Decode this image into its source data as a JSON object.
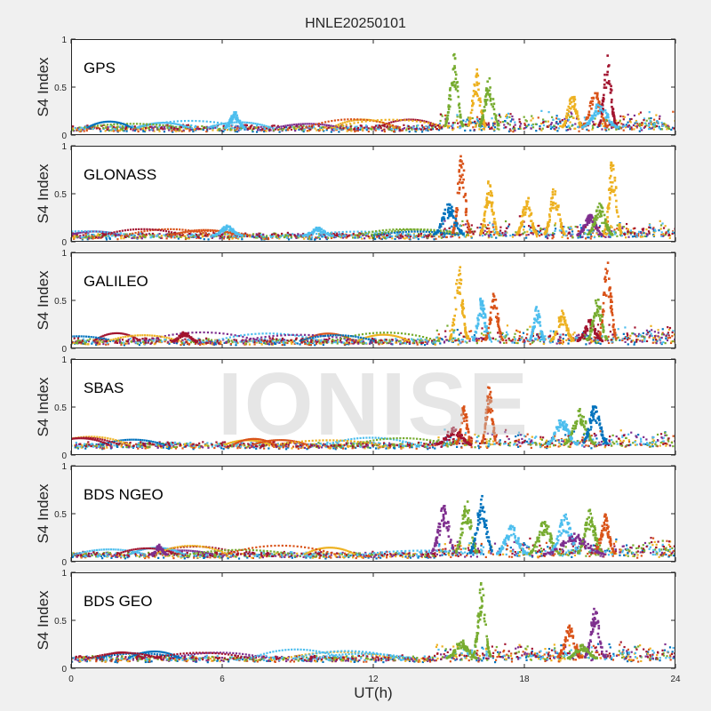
{
  "title": "HNLE20250101",
  "xlabel": "UT(h)",
  "watermark": "IONISE",
  "chart_data": {
    "type": "scatter",
    "title": "HNLE20250101",
    "xlabel": "UT(h)",
    "ylabel": "S4 Index",
    "xlim": [
      0,
      24
    ],
    "ylim": [
      0,
      1
    ],
    "xticks": [
      0,
      6,
      12,
      18,
      24
    ],
    "yticks": [
      0,
      0.5,
      1
    ],
    "ytick_labels": [
      "0",
      "0.5",
      "1"
    ],
    "series_colors": [
      "#0072bd",
      "#d95319",
      "#edb120",
      "#7e2f8e",
      "#77ac30",
      "#4dbeee",
      "#a2142f"
    ],
    "panels": [
      {
        "label": "GPS",
        "baseline": 0.07,
        "events": [
          {
            "x": 15.2,
            "width": 0.35,
            "peak": 0.85,
            "color": 4
          },
          {
            "x": 16.1,
            "width": 0.35,
            "peak": 0.7,
            "color": 2
          },
          {
            "x": 16.6,
            "width": 0.4,
            "peak": 0.6,
            "color": 4
          },
          {
            "x": 19.9,
            "width": 0.4,
            "peak": 0.45,
            "color": 2
          },
          {
            "x": 20.8,
            "width": 0.5,
            "peak": 0.5,
            "color": 1
          },
          {
            "x": 21.3,
            "width": 0.35,
            "peak": 0.83,
            "color": 6
          },
          {
            "x": 21.0,
            "width": 0.7,
            "peak": 0.35,
            "color": 5
          },
          {
            "x": 6.5,
            "width": 0.4,
            "peak": 0.25,
            "color": 5
          }
        ]
      },
      {
        "label": "GLONASS",
        "baseline": 0.06,
        "events": [
          {
            "x": 15.5,
            "width": 0.35,
            "peak": 0.95,
            "color": 1
          },
          {
            "x": 15.0,
            "width": 0.6,
            "peak": 0.4,
            "color": 0
          },
          {
            "x": 16.6,
            "width": 0.35,
            "peak": 0.65,
            "color": 2
          },
          {
            "x": 18.1,
            "width": 0.4,
            "peak": 0.5,
            "color": 2
          },
          {
            "x": 19.2,
            "width": 0.4,
            "peak": 0.6,
            "color": 2
          },
          {
            "x": 21.5,
            "width": 0.35,
            "peak": 0.9,
            "color": 2
          },
          {
            "x": 20.6,
            "width": 0.5,
            "peak": 0.3,
            "color": 3
          },
          {
            "x": 21.0,
            "width": 0.5,
            "peak": 0.4,
            "color": 4
          },
          {
            "x": 6.2,
            "width": 0.6,
            "peak": 0.17,
            "color": 5
          },
          {
            "x": 9.8,
            "width": 0.6,
            "peak": 0.15,
            "color": 5
          }
        ]
      },
      {
        "label": "GALILEO",
        "baseline": 0.07,
        "events": [
          {
            "x": 15.4,
            "width": 0.35,
            "peak": 0.92,
            "color": 2
          },
          {
            "x": 16.3,
            "width": 0.35,
            "peak": 0.55,
            "color": 5
          },
          {
            "x": 16.8,
            "width": 0.35,
            "peak": 0.6,
            "color": 1
          },
          {
            "x": 18.5,
            "width": 0.3,
            "peak": 0.45,
            "color": 5
          },
          {
            "x": 19.5,
            "width": 0.45,
            "peak": 0.4,
            "color": 2
          },
          {
            "x": 21.3,
            "width": 0.35,
            "peak": 0.97,
            "color": 1
          },
          {
            "x": 20.6,
            "width": 0.5,
            "peak": 0.3,
            "color": 6
          },
          {
            "x": 20.9,
            "width": 0.4,
            "peak": 0.55,
            "color": 4
          },
          {
            "x": 4.5,
            "width": 0.5,
            "peak": 0.18,
            "color": 6
          }
        ]
      },
      {
        "label": "SBAS",
        "baseline": 0.1,
        "events": [
          {
            "x": 15.6,
            "width": 0.3,
            "peak": 0.55,
            "color": 1
          },
          {
            "x": 16.6,
            "width": 0.3,
            "peak": 0.75,
            "color": 1
          },
          {
            "x": 15.2,
            "width": 0.7,
            "peak": 0.3,
            "color": 6
          },
          {
            "x": 20.2,
            "width": 0.6,
            "peak": 0.5,
            "color": 4
          },
          {
            "x": 20.8,
            "width": 0.5,
            "peak": 0.55,
            "color": 0
          },
          {
            "x": 19.5,
            "width": 0.6,
            "peak": 0.4,
            "color": 5
          }
        ]
      },
      {
        "label": "BDS NGEO",
        "baseline": 0.07,
        "events": [
          {
            "x": 14.8,
            "width": 0.5,
            "peak": 0.6,
            "color": 3
          },
          {
            "x": 15.7,
            "width": 0.45,
            "peak": 0.65,
            "color": 4
          },
          {
            "x": 16.3,
            "width": 0.45,
            "peak": 0.7,
            "color": 0
          },
          {
            "x": 17.5,
            "width": 0.6,
            "peak": 0.4,
            "color": 5
          },
          {
            "x": 18.8,
            "width": 0.6,
            "peak": 0.45,
            "color": 4
          },
          {
            "x": 19.6,
            "width": 0.6,
            "peak": 0.5,
            "color": 5
          },
          {
            "x": 20.6,
            "width": 0.5,
            "peak": 0.55,
            "color": 4
          },
          {
            "x": 21.2,
            "width": 0.4,
            "peak": 0.5,
            "color": 1
          },
          {
            "x": 20.0,
            "width": 1.2,
            "peak": 0.3,
            "color": 3
          },
          {
            "x": 3.5,
            "width": 0.3,
            "peak": 0.18,
            "color": 3
          }
        ]
      },
      {
        "label": "BDS GEO",
        "baseline": 0.1,
        "events": [
          {
            "x": 16.3,
            "width": 0.35,
            "peak": 0.9,
            "color": 4
          },
          {
            "x": 15.5,
            "width": 0.6,
            "peak": 0.3,
            "color": 4
          },
          {
            "x": 19.8,
            "width": 0.5,
            "peak": 0.45,
            "color": 1
          },
          {
            "x": 20.8,
            "width": 0.4,
            "peak": 0.65,
            "color": 3
          },
          {
            "x": 20.3,
            "width": 0.6,
            "peak": 0.25,
            "color": 4
          }
        ]
      }
    ]
  }
}
